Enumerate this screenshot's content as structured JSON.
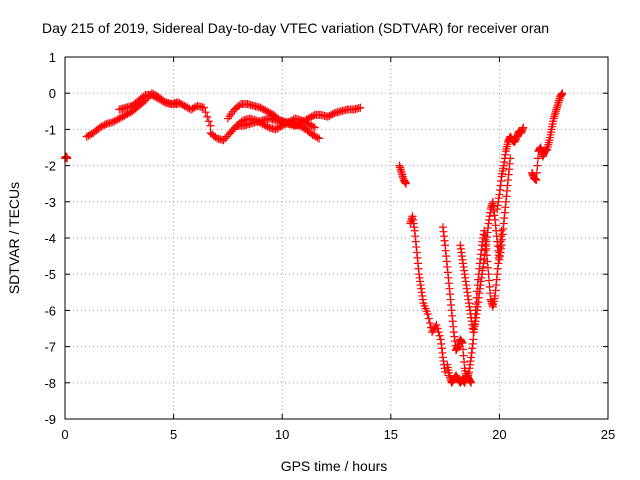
{
  "chart_data": {
    "type": "scatter",
    "title": "Day 215 of 2019, Sidereal Day-to-day VTEC variation (SDTVAR) for receiver oran",
    "xlabel": "GPS time / hours",
    "ylabel": "SDTVAR / TECUs",
    "xlim": [
      0,
      25
    ],
    "ylim": [
      -9,
      1
    ],
    "x_ticks": [
      0,
      5,
      10,
      15,
      20,
      25
    ],
    "y_ticks": [
      1,
      0,
      -1,
      -2,
      -3,
      -4,
      -5,
      -6,
      -7,
      -8,
      -9
    ],
    "grid": true,
    "marker": "+",
    "colors": {
      "series": "#ff0000",
      "grid": "#a0a0a0",
      "axes": "#000000"
    },
    "series": [
      {
        "name": "SDTVAR",
        "segments": [
          {
            "x": [
              0.0,
              0.05,
              0.1
            ],
            "y": [
              -1.8,
              -1.75,
              -1.8
            ]
          },
          {
            "x": [
              1.0,
              1.3,
              1.6,
              1.9,
              2.2,
              2.5,
              2.8,
              3.1,
              3.4,
              3.7,
              4.0,
              4.3,
              4.6,
              4.9,
              5.2,
              5.5,
              5.8,
              6.1,
              6.4,
              6.7
            ],
            "y": [
              -1.2,
              -1.1,
              -0.95,
              -0.85,
              -0.8,
              -0.7,
              -0.6,
              -0.5,
              -0.35,
              -0.2,
              0.0,
              -0.1,
              -0.25,
              -0.3,
              -0.25,
              -0.35,
              -0.45,
              -0.35,
              -0.4,
              -0.9
            ]
          },
          {
            "x": [
              2.5,
              2.8,
              3.1,
              3.4,
              3.7,
              4.0,
              4.3,
              4.6,
              4.9,
              5.2
            ],
            "y": [
              -0.45,
              -0.4,
              -0.35,
              -0.2,
              -0.05,
              -0.05,
              -0.15,
              -0.25,
              -0.3,
              -0.3
            ]
          },
          {
            "x": [
              6.7,
              7.0,
              7.3,
              7.6,
              7.9,
              8.2,
              8.5,
              8.8,
              9.1,
              9.4,
              9.7,
              10.0,
              10.3,
              10.6,
              10.9,
              11.2,
              11.5,
              11.8,
              12.1,
              12.4,
              12.7,
              13.0,
              13.3,
              13.6
            ],
            "y": [
              -1.1,
              -1.25,
              -1.3,
              -1.1,
              -0.9,
              -0.9,
              -0.85,
              -0.8,
              -0.75,
              -0.7,
              -0.75,
              -0.8,
              -0.85,
              -0.9,
              -0.8,
              -0.7,
              -0.6,
              -0.6,
              -0.65,
              -0.55,
              -0.5,
              -0.45,
              -0.45,
              -0.4
            ]
          },
          {
            "x": [
              7.5,
              7.8,
              8.1,
              8.4,
              8.7,
              9.0,
              9.3,
              9.6,
              9.9,
              10.2,
              10.5,
              10.8,
              11.1,
              11.4,
              11.7
            ],
            "y": [
              -0.7,
              -0.45,
              -0.3,
              -0.3,
              -0.35,
              -0.4,
              -0.5,
              -0.6,
              -0.75,
              -0.8,
              -0.85,
              -0.9,
              -1.0,
              -1.15,
              -1.25
            ]
          },
          {
            "x": [
              7.6,
              7.9,
              8.2,
              8.5,
              8.8,
              9.1,
              9.4,
              9.7,
              10.0,
              10.3,
              10.6,
              10.9,
              11.2,
              11.5
            ],
            "y": [
              -1.1,
              -0.9,
              -0.75,
              -0.7,
              -0.75,
              -0.85,
              -0.95,
              -1.0,
              -0.9,
              -0.8,
              -0.7,
              -0.75,
              -0.85,
              -0.95
            ]
          },
          {
            "x": [
              15.4,
              15.5,
              15.6,
              15.7
            ],
            "y": [
              -2.0,
              -2.2,
              -2.4,
              -2.5
            ]
          },
          {
            "x": [
              15.9,
              16.0,
              16.1,
              16.2,
              16.3,
              16.4,
              16.5,
              16.7,
              16.9,
              17.1,
              17.3,
              17.4,
              17.5
            ],
            "y": [
              -3.6,
              -3.4,
              -3.8,
              -4.4,
              -5.0,
              -5.4,
              -5.8,
              -6.1,
              -6.6,
              -6.4,
              -6.8,
              -7.3,
              -7.7
            ]
          },
          {
            "x": [
              17.4,
              17.5,
              17.6,
              17.7,
              17.8,
              17.9,
              18.0,
              18.1,
              18.2,
              18.3,
              18.4,
              18.5,
              18.6,
              18.7,
              18.8,
              18.9,
              19.0,
              19.1,
              19.2,
              19.3,
              19.4,
              19.5,
              19.6,
              19.7,
              19.8,
              19.9,
              20.0,
              20.1
            ],
            "y": [
              -3.7,
              -4.2,
              -4.8,
              -5.4,
              -6.0,
              -6.6,
              -7.1,
              -7.0,
              -6.8,
              -6.9,
              -7.6,
              -7.9,
              -7.7,
              -7.3,
              -6.8,
              -6.0,
              -5.3,
              -4.7,
              -4.2,
              -3.8,
              -4.3,
              -5.0,
              -5.7,
              -5.9,
              -5.6,
              -5.0,
              -4.4,
              -3.8
            ]
          },
          {
            "x": [
              17.6,
              17.7,
              17.8,
              17.9,
              18.0,
              18.1,
              18.2,
              18.3,
              18.4,
              18.5,
              18.6,
              18.7
            ],
            "y": [
              -7.5,
              -7.8,
              -8.0,
              -7.9,
              -7.8,
              -7.9,
              -8.0,
              -7.9,
              -8.0,
              -7.8,
              -7.9,
              -8.0
            ]
          },
          {
            "x": [
              18.2,
              18.3,
              18.4,
              18.5,
              18.6,
              18.7,
              18.8,
              18.9,
              19.0,
              19.1,
              19.2,
              19.3,
              19.4,
              19.5,
              19.6,
              19.7,
              19.8,
              19.9,
              20.0,
              20.1,
              20.2,
              20.3,
              20.4,
              20.5
            ],
            "y": [
              -4.2,
              -4.6,
              -5.0,
              -5.4,
              -5.8,
              -6.2,
              -6.6,
              -6.3,
              -5.9,
              -5.4,
              -5.0,
              -4.6,
              -4.1,
              -3.6,
              -3.2,
              -3.0,
              -3.5,
              -4.1,
              -4.6,
              -4.2,
              -3.6,
              -3.0,
              -2.4,
              -1.8
            ]
          },
          {
            "x": [
              19.9,
              20.0,
              20.1,
              20.2,
              20.3,
              20.4,
              20.5,
              20.6,
              20.7,
              20.8,
              20.9,
              21.0,
              21.1
            ],
            "y": [
              -3.2,
              -2.8,
              -2.3,
              -2.0,
              -1.6,
              -1.35,
              -1.2,
              -1.3,
              -1.35,
              -1.2,
              -1.05,
              -1.1,
              -0.95
            ]
          },
          {
            "x": [
              21.5,
              21.6,
              21.7,
              21.8,
              21.9,
              22.0,
              22.1,
              22.2,
              22.3,
              22.4,
              22.5,
              22.6,
              22.7,
              22.8,
              22.9
            ],
            "y": [
              -2.2,
              -2.35,
              -2.4,
              -1.6,
              -1.5,
              -1.75,
              -1.6,
              -1.55,
              -1.3,
              -1.0,
              -0.7,
              -0.5,
              -0.3,
              -0.1,
              0.0
            ]
          }
        ]
      }
    ]
  }
}
